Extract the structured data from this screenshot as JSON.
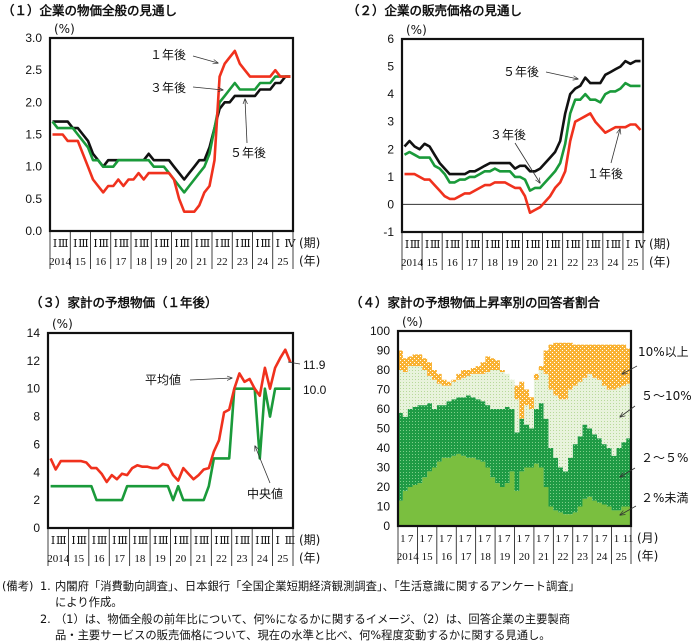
{
  "colors": {
    "red": "#f0311d",
    "green": "#1a9a3a",
    "black": "#111111",
    "orange": "#f9b233",
    "light_green": "#cfe6b4",
    "dark_green": "#23a04a",
    "mid_green": "#7abf3f"
  },
  "chart_data": [
    {
      "type": "line",
      "title": "（１）企業の物価全般の見通し",
      "ylabel": "(%)",
      "ylim": [
        0,
        3
      ],
      "yticks": [
        "0.0",
        "0.5",
        "1.0",
        "1.5",
        "2.0",
        "2.5",
        "3.0"
      ],
      "x_unit_period": "(期)",
      "x_unit_year": "(年)",
      "years": [
        "2014",
        "15",
        "16",
        "17",
        "18",
        "19",
        "20",
        "21",
        "22",
        "23",
        "24",
        "25"
      ],
      "quarter_labels": [
        "Ⅰ",
        "Ⅲ"
      ],
      "last_quarter_labels": [
        "Ⅰ",
        "Ⅳ"
      ],
      "x": "2014Q1–2025Q4 quarterly",
      "series": [
        {
          "name": "１年後",
          "color": "#f0311d",
          "values": [
            1.5,
            1.5,
            1.5,
            1.4,
            1.4,
            1.4,
            1.2,
            1.0,
            0.8,
            0.7,
            0.6,
            0.7,
            0.7,
            0.8,
            0.7,
            0.8,
            0.8,
            0.9,
            0.8,
            0.9,
            0.9,
            0.9,
            0.9,
            0.9,
            0.8,
            0.5,
            0.3,
            0.3,
            0.3,
            0.4,
            0.6,
            0.7,
            1.1,
            2.4,
            2.6,
            2.7,
            2.8,
            2.6,
            2.5,
            2.4,
            2.4,
            2.4,
            2.4,
            2.4,
            2.5,
            2.4,
            2.4,
            2.4
          ]
        },
        {
          "name": "３年後",
          "color": "#1a9a3a",
          "values": [
            1.7,
            1.6,
            1.6,
            1.6,
            1.6,
            1.5,
            1.4,
            1.3,
            1.1,
            1.1,
            1.0,
            1.0,
            1.0,
            1.1,
            1.1,
            1.1,
            1.1,
            1.1,
            1.1,
            1.1,
            1.0,
            1.0,
            1.0,
            0.9,
            0.8,
            0.7,
            0.6,
            0.7,
            0.8,
            0.9,
            1.0,
            1.2,
            1.6,
            2.0,
            2.1,
            2.2,
            2.3,
            2.2,
            2.2,
            2.2,
            2.2,
            2.3,
            2.3,
            2.3,
            2.4,
            2.4,
            2.4,
            2.4
          ]
        },
        {
          "name": "５年後",
          "color": "#111111",
          "values": [
            1.7,
            1.7,
            1.7,
            1.7,
            1.6,
            1.6,
            1.5,
            1.4,
            1.2,
            1.1,
            1.0,
            1.1,
            1.1,
            1.1,
            1.1,
            1.1,
            1.1,
            1.1,
            1.1,
            1.2,
            1.1,
            1.1,
            1.1,
            1.1,
            1.0,
            0.9,
            0.8,
            0.9,
            1.0,
            1.1,
            1.1,
            1.3,
            1.6,
            1.9,
            2.0,
            2.0,
            2.1,
            2.1,
            2.1,
            2.1,
            2.1,
            2.2,
            2.2,
            2.2,
            2.3,
            2.3,
            2.4,
            2.4
          ]
        }
      ]
    },
    {
      "type": "line",
      "title": "（２）企業の販売価格の見通し",
      "ylabel": "(%)",
      "ylim": [
        -1,
        6
      ],
      "yticks": [
        "-1",
        "0",
        "1",
        "2",
        "3",
        "4",
        "5",
        "6"
      ],
      "x_unit_period": "(期)",
      "x_unit_year": "(年)",
      "years": [
        "2014",
        "15",
        "16",
        "17",
        "18",
        "19",
        "20",
        "21",
        "22",
        "23",
        "24",
        "25"
      ],
      "quarter_labels": [
        "Ⅰ",
        "Ⅲ"
      ],
      "last_quarter_labels": [
        "Ⅰ",
        "Ⅳ"
      ],
      "series": [
        {
          "name": "１年後",
          "color": "#f0311d",
          "values": [
            1.1,
            1.1,
            1.1,
            1.0,
            0.9,
            0.9,
            0.7,
            0.5,
            0.3,
            0.2,
            0.2,
            0.3,
            0.4,
            0.4,
            0.5,
            0.6,
            0.7,
            0.7,
            0.8,
            0.8,
            0.8,
            0.7,
            0.6,
            0.6,
            0.3,
            -0.3,
            -0.2,
            -0.1,
            0.1,
            0.3,
            0.6,
            0.8,
            1.2,
            2.3,
            3.0,
            3.1,
            3.2,
            3.3,
            3.0,
            2.8,
            2.6,
            2.7,
            2.8,
            2.8,
            2.8,
            2.9,
            2.9,
            2.7
          ]
        },
        {
          "name": "３年後",
          "color": "#1a9a3a",
          "values": [
            1.8,
            1.9,
            1.8,
            1.7,
            1.7,
            1.7,
            1.4,
            1.3,
            1.1,
            0.8,
            0.8,
            0.9,
            0.9,
            1.0,
            1.0,
            1.1,
            1.2,
            1.2,
            1.3,
            1.2,
            1.2,
            1.2,
            1.0,
            1.0,
            0.9,
            0.5,
            0.6,
            0.6,
            0.8,
            1.0,
            1.2,
            1.5,
            2.2,
            3.3,
            3.8,
            3.8,
            4.0,
            3.8,
            3.8,
            3.7,
            4.0,
            4.1,
            4.1,
            4.2,
            4.4,
            4.3,
            4.3,
            4.3
          ]
        },
        {
          "name": "５年後",
          "color": "#111111",
          "values": [
            2.1,
            2.3,
            2.1,
            2.0,
            2.2,
            2.1,
            1.8,
            1.5,
            1.3,
            1.1,
            1.1,
            1.1,
            1.1,
            1.2,
            1.2,
            1.3,
            1.4,
            1.5,
            1.5,
            1.5,
            1.5,
            1.5,
            1.3,
            1.4,
            1.4,
            1.2,
            1.2,
            1.3,
            1.5,
            1.7,
            1.9,
            2.3,
            3.3,
            4.0,
            4.2,
            4.3,
            4.6,
            4.4,
            4.4,
            4.4,
            4.7,
            4.8,
            4.9,
            5.0,
            5.2,
            5.1,
            5.2,
            5.2
          ]
        }
      ]
    },
    {
      "type": "line",
      "title": "（３）家計の予想物価（１年後）",
      "ylabel": "(%)",
      "ylim": [
        0,
        14
      ],
      "yticks": [
        "0",
        "2",
        "4",
        "6",
        "8",
        "10",
        "12",
        "14"
      ],
      "x_unit_period": "(期)",
      "x_unit_year": "(年)",
      "years": [
        "2014",
        "15",
        "16",
        "17",
        "18",
        "19",
        "20",
        "21",
        "22",
        "23",
        "24",
        "25"
      ],
      "quarter_labels": [
        "Ⅰ",
        "Ⅲ"
      ],
      "last_quarter_labels": [
        "Ⅰ",
        "Ⅲ"
      ],
      "series": [
        {
          "name": "平均値",
          "color": "#f0311d",
          "end_label": "11.9",
          "values": [
            5.0,
            4.2,
            4.8,
            4.8,
            4.8,
            4.8,
            4.8,
            4.7,
            4.3,
            4.3,
            3.9,
            3.3,
            3.8,
            3.5,
            3.9,
            3.8,
            4.3,
            4.5,
            4.4,
            4.4,
            4.3,
            4.3,
            4.6,
            4.5,
            3.8,
            3.4,
            4.3,
            3.9,
            3.5,
            3.8,
            4.2,
            4.3,
            5.5,
            6.3,
            8.3,
            8.5,
            10.0,
            11.1,
            10.5,
            10.7,
            10.0,
            9.5,
            11.5,
            10.0,
            11.5,
            12.2,
            12.8,
            11.9
          ]
        },
        {
          "name": "中央値",
          "color": "#1a9a3a",
          "end_label": "10.0",
          "values": [
            3,
            3,
            3,
            3,
            3,
            3,
            3,
            3,
            3,
            2,
            2,
            2,
            2,
            2,
            2,
            3,
            3,
            3,
            3,
            3,
            3,
            3,
            3,
            3,
            2,
            3,
            2,
            2,
            2,
            2,
            2,
            3,
            5,
            5,
            5,
            5,
            10,
            10,
            10,
            10,
            10,
            5,
            10,
            8,
            10,
            10,
            10,
            10
          ]
        }
      ]
    },
    {
      "type": "area",
      "stacked": true,
      "title": "（４）家計の予想物価上昇率別の回答者割合",
      "ylabel": "(%)",
      "ylim": [
        0,
        100
      ],
      "yticks": [
        "0",
        "10",
        "20",
        "30",
        "40",
        "50",
        "60",
        "70",
        "80",
        "90",
        "100"
      ],
      "x_unit_period": "(月)",
      "x_unit_year": "(年)",
      "years": [
        "2014",
        "15",
        "16",
        "17",
        "18",
        "19",
        "20",
        "21",
        "22",
        "23",
        "24",
        "25"
      ],
      "quarter_labels": [
        "1",
        "7"
      ],
      "last_quarter_labels": [
        "1",
        "11"
      ],
      "series": [
        {
          "name": "２%未満",
          "color": "#7abf3f",
          "values": [
            13,
            18,
            20,
            21,
            22,
            25,
            28,
            30,
            33,
            35,
            35,
            36,
            37,
            36,
            35,
            35,
            34,
            33,
            30,
            25,
            22,
            20,
            22,
            28,
            18,
            28,
            30,
            30,
            32,
            30,
            20,
            10,
            8,
            7,
            6,
            6,
            7,
            10,
            14,
            15,
            13,
            12,
            11,
            10,
            8,
            8,
            10,
            10
          ]
        },
        {
          "name": "２～５%",
          "color": "#23a04a",
          "values": [
            45,
            38,
            40,
            40,
            40,
            37,
            35,
            30,
            29,
            27,
            29,
            29,
            29,
            30,
            32,
            31,
            31,
            31,
            32,
            35,
            38,
            40,
            39,
            32,
            30,
            27,
            22,
            20,
            28,
            33,
            35,
            30,
            27,
            23,
            22,
            29,
            35,
            36,
            38,
            35,
            34,
            33,
            31,
            30,
            28,
            32,
            33,
            35
          ]
        },
        {
          "name": "５～10%",
          "color": "#cfe6b4",
          "values": [
            22,
            23,
            22,
            21,
            20,
            18,
            14,
            15,
            11,
            10,
            8,
            9,
            9,
            10,
            10,
            12,
            13,
            14,
            17,
            20,
            20,
            19,
            17,
            15,
            17,
            0,
            10,
            10,
            15,
            17,
            23,
            30,
            32,
            35,
            37,
            35,
            30,
            28,
            24,
            28,
            29,
            30,
            30,
            30,
            34,
            31,
            29,
            28
          ]
        },
        {
          "name": "10%以上",
          "color": "#f9b233",
          "values": [
            10,
            7,
            5,
            6,
            6,
            6,
            7,
            5,
            5,
            3,
            2,
            1,
            3,
            4,
            3,
            3,
            4,
            6,
            8,
            6,
            5,
            1,
            0,
            0,
            7,
            19,
            8,
            6,
            3,
            2,
            12,
            23,
            27,
            29,
            29,
            24,
            21,
            19,
            17,
            15,
            17,
            18,
            21,
            23,
            23,
            22,
            21,
            18
          ]
        }
      ]
    }
  ],
  "notes": {
    "label": "(備考)",
    "items": [
      {
        "num": "1.",
        "lines": [
          "内閣府「消費動向調査」、日本銀行「全国企業短期経済観測調査」、「生活意識に関するアンケート調査」",
          "により作成。"
        ]
      },
      {
        "num": "2.",
        "lines": [
          "（1）は、物価全般の前年比について、何%になるかに関するイメージ、（2）は、回答企業の主要製商",
          "品・主要サービスの販売価格について、現在の水準と比べ、何%程度変動するかに関する見通し。"
        ]
      }
    ]
  }
}
